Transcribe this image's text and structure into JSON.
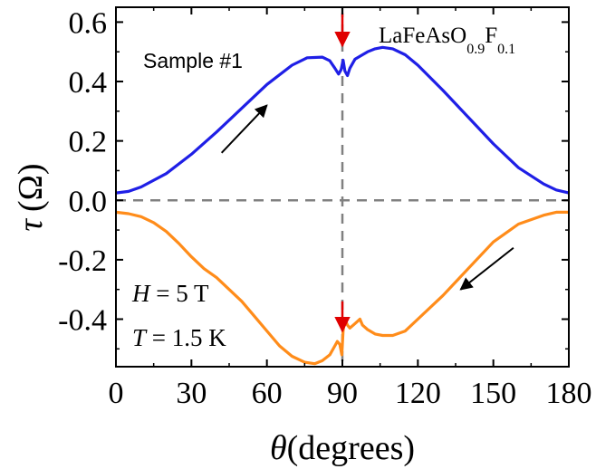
{
  "chart_data": {
    "type": "line",
    "xlabel_symbol": "θ",
    "xlabel_text": "(degrees)",
    "ylabel_symbol": "τ",
    "ylabel_unit": "(Ω)",
    "xlim": [
      0,
      180
    ],
    "ylim": [
      -0.56,
      0.65
    ],
    "x_ticks": [
      0,
      30,
      60,
      90,
      120,
      150,
      180
    ],
    "y_ticks": [
      0.6,
      0.4,
      0.2,
      0.0,
      -0.2,
      -0.4
    ],
    "y_tick_labels": [
      "0.6",
      "0.4",
      "0.2",
      "0.0",
      "-0.2",
      "-0.4"
    ],
    "reference_lines": {
      "y": 0.0,
      "x": 90,
      "style": "dashed",
      "color": "#808080"
    },
    "series": [
      {
        "color": "#1f1fe6",
        "points": [
          [
            0,
            0.025
          ],
          [
            5,
            0.03
          ],
          [
            10,
            0.045
          ],
          [
            20,
            0.09
          ],
          [
            30,
            0.155
          ],
          [
            40,
            0.23
          ],
          [
            50,
            0.31
          ],
          [
            60,
            0.39
          ],
          [
            70,
            0.455
          ],
          [
            76,
            0.48
          ],
          [
            82,
            0.482
          ],
          [
            85,
            0.47
          ],
          [
            87,
            0.445
          ],
          [
            88.5,
            0.425
          ],
          [
            89.5,
            0.44
          ],
          [
            90.3,
            0.472
          ],
          [
            91,
            0.435
          ],
          [
            92,
            0.42
          ],
          [
            93,
            0.445
          ],
          [
            95,
            0.475
          ],
          [
            98,
            0.49
          ],
          [
            100,
            0.5
          ],
          [
            103,
            0.51
          ],
          [
            106,
            0.515
          ],
          [
            110,
            0.51
          ],
          [
            115,
            0.49
          ],
          [
            120,
            0.455
          ],
          [
            130,
            0.37
          ],
          [
            140,
            0.28
          ],
          [
            150,
            0.19
          ],
          [
            160,
            0.11
          ],
          [
            170,
            0.055
          ],
          [
            175,
            0.035
          ],
          [
            180,
            0.025
          ]
        ]
      },
      {
        "color": "#ff8c1a",
        "points": [
          [
            0,
            -0.04
          ],
          [
            5,
            -0.045
          ],
          [
            10,
            -0.055
          ],
          [
            15,
            -0.075
          ],
          [
            20,
            -0.105
          ],
          [
            25,
            -0.145
          ],
          [
            30,
            -0.19
          ],
          [
            35,
            -0.23
          ],
          [
            40,
            -0.26
          ],
          [
            45,
            -0.3
          ],
          [
            50,
            -0.34
          ],
          [
            55,
            -0.39
          ],
          [
            60,
            -0.44
          ],
          [
            65,
            -0.49
          ],
          [
            70,
            -0.525
          ],
          [
            75,
            -0.545
          ],
          [
            79,
            -0.55
          ],
          [
            82,
            -0.54
          ],
          [
            85,
            -0.52
          ],
          [
            87,
            -0.49
          ],
          [
            88,
            -0.475
          ],
          [
            89,
            -0.485
          ],
          [
            89.8,
            -0.52
          ],
          [
            90.3,
            -0.44
          ],
          [
            91,
            -0.4
          ],
          [
            92,
            -0.42
          ],
          [
            93,
            -0.43
          ],
          [
            95,
            -0.415
          ],
          [
            97,
            -0.4
          ],
          [
            98,
            -0.42
          ],
          [
            100,
            -0.435
          ],
          [
            103,
            -0.45
          ],
          [
            106,
            -0.455
          ],
          [
            110,
            -0.455
          ],
          [
            115,
            -0.44
          ],
          [
            120,
            -0.4
          ],
          [
            130,
            -0.32
          ],
          [
            140,
            -0.23
          ],
          [
            150,
            -0.14
          ],
          [
            160,
            -0.08
          ],
          [
            170,
            -0.05
          ],
          [
            175,
            -0.04
          ],
          [
            180,
            -0.04
          ]
        ]
      }
    ],
    "annotations": {
      "sample": "Sample #1",
      "compound": {
        "base": "LaFeAsO",
        "sub1": "0.9",
        "mid": "F",
        "sub2": "0.1"
      },
      "field": {
        "symbol": "H",
        "rest": " = 5 T"
      },
      "temperature": {
        "symbol": "T",
        "rest": " = 1.5 K"
      }
    },
    "arrows": [
      {
        "color": "#000000",
        "from": [
          42,
          0.16
        ],
        "to": [
          60,
          0.32
        ]
      },
      {
        "color": "#000000",
        "from": [
          158,
          -0.16
        ],
        "to": [
          137,
          -0.3
        ]
      },
      {
        "color": "#e00000",
        "from": [
          90,
          0.63
        ],
        "to": [
          90,
          0.52
        ]
      },
      {
        "color": "#e00000",
        "from": [
          90,
          -0.34
        ],
        "to": [
          90,
          -0.44
        ]
      }
    ],
    "grid": false,
    "legend": "none"
  }
}
